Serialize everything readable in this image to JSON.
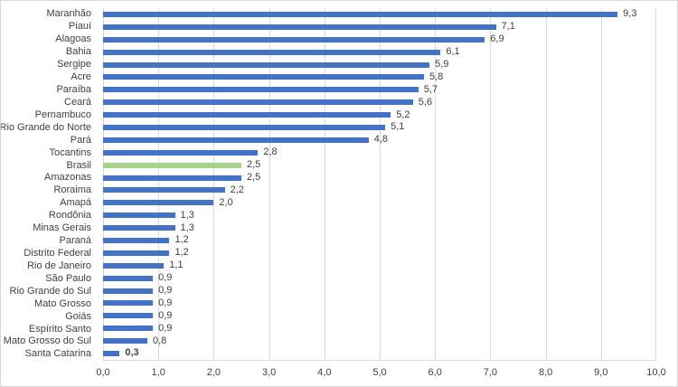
{
  "chart_data": {
    "type": "bar",
    "orientation": "horizontal",
    "title": "",
    "xlabel": "",
    "ylabel": "",
    "xlim": [
      0,
      10
    ],
    "x_ticks": [
      "0,0",
      "1,0",
      "2,0",
      "3,0",
      "4,0",
      "5,0",
      "6,0",
      "7,0",
      "8,0",
      "9,0",
      "10,0"
    ],
    "grid": true,
    "legend": "none",
    "decimal_separator": ",",
    "colors": {
      "bar": "#4472c4",
      "highlight": "#a9d18e",
      "gridline": "#d9d9d9",
      "axis_line": "#d9d9d9",
      "text": "#404040",
      "background": "#ffffff"
    },
    "bars": [
      {
        "label": "Maranhão",
        "value": 9.3,
        "value_label": "9,3",
        "highlight": false,
        "bold_value": false
      },
      {
        "label": "Piauí",
        "value": 7.1,
        "value_label": "7,1",
        "highlight": false,
        "bold_value": false
      },
      {
        "label": "Alagoas",
        "value": 6.9,
        "value_label": "6,9",
        "highlight": false,
        "bold_value": false
      },
      {
        "label": "Bahia",
        "value": 6.1,
        "value_label": "6,1",
        "highlight": false,
        "bold_value": false
      },
      {
        "label": "Sergipe",
        "value": 5.9,
        "value_label": "5,9",
        "highlight": false,
        "bold_value": false
      },
      {
        "label": "Acre",
        "value": 5.8,
        "value_label": "5,8",
        "highlight": false,
        "bold_value": false
      },
      {
        "label": "Paraíba",
        "value": 5.7,
        "value_label": "5,7",
        "highlight": false,
        "bold_value": false
      },
      {
        "label": "Ceará",
        "value": 5.6,
        "value_label": "5,6",
        "highlight": false,
        "bold_value": false
      },
      {
        "label": "Pernambuco",
        "value": 5.2,
        "value_label": "5,2",
        "highlight": false,
        "bold_value": false
      },
      {
        "label": "Rio Grande do Norte",
        "value": 5.1,
        "value_label": "5,1",
        "highlight": false,
        "bold_value": false
      },
      {
        "label": "Pará",
        "value": 4.8,
        "value_label": "4,8",
        "highlight": false,
        "bold_value": false
      },
      {
        "label": "Tocantins",
        "value": 2.8,
        "value_label": "2,8",
        "highlight": false,
        "bold_value": false
      },
      {
        "label": "Brasil",
        "value": 2.5,
        "value_label": "2,5",
        "highlight": true,
        "bold_value": false
      },
      {
        "label": "Amazonas",
        "value": 2.5,
        "value_label": "2,5",
        "highlight": false,
        "bold_value": false
      },
      {
        "label": "Roraima",
        "value": 2.2,
        "value_label": "2,2",
        "highlight": false,
        "bold_value": false
      },
      {
        "label": "Amapá",
        "value": 2.0,
        "value_label": "2,0",
        "highlight": false,
        "bold_value": false
      },
      {
        "label": "Rondônia",
        "value": 1.3,
        "value_label": "1,3",
        "highlight": false,
        "bold_value": false
      },
      {
        "label": "Minas Gerais",
        "value": 1.3,
        "value_label": "1,3",
        "highlight": false,
        "bold_value": false
      },
      {
        "label": "Paraná",
        "value": 1.2,
        "value_label": "1,2",
        "highlight": false,
        "bold_value": false
      },
      {
        "label": "Distrito Federal",
        "value": 1.2,
        "value_label": "1,2",
        "highlight": false,
        "bold_value": false
      },
      {
        "label": "Rio de Janeiro",
        "value": 1.1,
        "value_label": "1,1",
        "highlight": false,
        "bold_value": false
      },
      {
        "label": "São Paulo",
        "value": 0.9,
        "value_label": "0,9",
        "highlight": false,
        "bold_value": false
      },
      {
        "label": "Rio Grande do Sul",
        "value": 0.9,
        "value_label": "0,9",
        "highlight": false,
        "bold_value": false
      },
      {
        "label": "Mato Grosso",
        "value": 0.9,
        "value_label": "0,9",
        "highlight": false,
        "bold_value": false
      },
      {
        "label": "Goiás",
        "value": 0.9,
        "value_label": "0,9",
        "highlight": false,
        "bold_value": false
      },
      {
        "label": "Espírito Santo",
        "value": 0.9,
        "value_label": "0,9",
        "highlight": false,
        "bold_value": false
      },
      {
        "label": "Mato Grosso do Sul",
        "value": 0.8,
        "value_label": "0,8",
        "highlight": false,
        "bold_value": false
      },
      {
        "label": "Santa Catarina",
        "value": 0.3,
        "value_label": "0,3",
        "highlight": false,
        "bold_value": true
      }
    ]
  }
}
